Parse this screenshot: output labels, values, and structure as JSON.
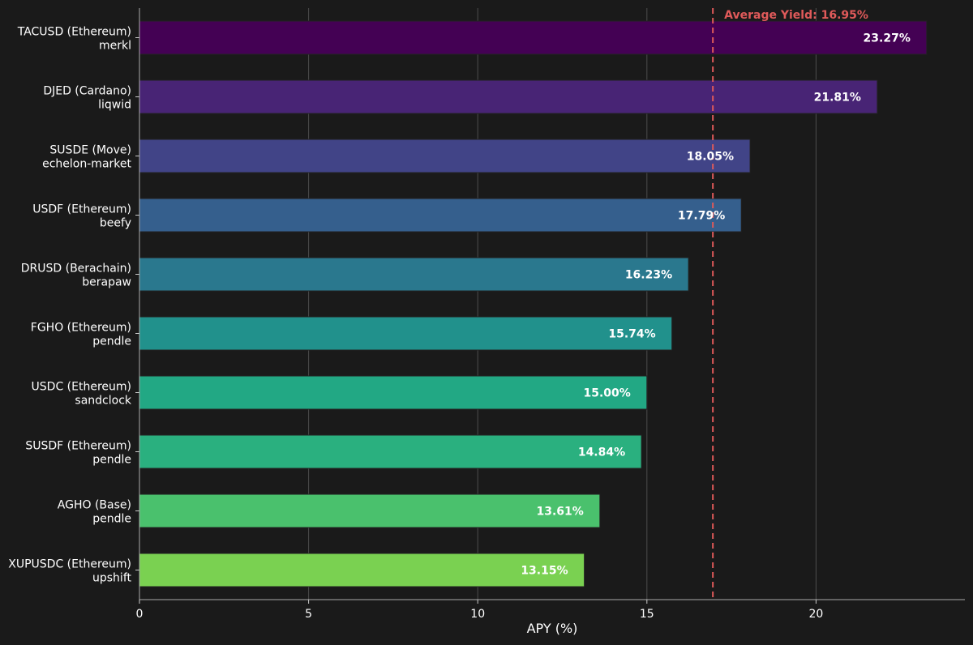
{
  "chart_data": {
    "type": "bar",
    "orientation": "horizontal",
    "categories": [
      {
        "line1": "TACUSD (Ethereum)",
        "line2": "merkl"
      },
      {
        "line1": "DJED (Cardano)",
        "line2": "liqwid"
      },
      {
        "line1": "SUSDE (Move)",
        "line2": "echelon-market"
      },
      {
        "line1": "USDF (Ethereum)",
        "line2": "beefy"
      },
      {
        "line1": "DRUSD (Berachain)",
        "line2": "berapaw"
      },
      {
        "line1": "FGHO (Ethereum)",
        "line2": "pendle"
      },
      {
        "line1": "USDC (Ethereum)",
        "line2": "sandclock"
      },
      {
        "line1": "SUSDF (Ethereum)",
        "line2": "pendle"
      },
      {
        "line1": "AGHO (Base)",
        "line2": "pendle"
      },
      {
        "line1": "XUPUSDC (Ethereum)",
        "line2": "upshift"
      }
    ],
    "values": [
      23.27,
      21.81,
      18.05,
      17.79,
      16.23,
      15.74,
      15.0,
      14.84,
      13.61,
      13.15
    ],
    "value_labels": [
      "23.27%",
      "21.81%",
      "18.05%",
      "17.79%",
      "16.23%",
      "15.74%",
      "15.00%",
      "14.84%",
      "13.61%",
      "13.15%"
    ],
    "colors": [
      "#440154",
      "#482475",
      "#414487",
      "#355f8d",
      "#2a788e",
      "#21918c",
      "#22a884",
      "#44bf70",
      "#7ad151",
      "#7ad151"
    ],
    "bar_colors": [
      "#440154",
      "#482475",
      "#414487",
      "#355f8d",
      "#2a788e",
      "#21918c",
      "#22a884",
      "#2ab07f",
      "#4ac16d",
      "#7ad151"
    ],
    "xlabel": "APY (%)",
    "xlim": [
      0,
      24.4
    ],
    "xticks": [
      0,
      5,
      10,
      15,
      20
    ],
    "grid": true,
    "average": {
      "value": 16.95,
      "label": "Average Yield: 16.95%",
      "color": "#e05a5a"
    },
    "background": "#1a1a1a"
  }
}
